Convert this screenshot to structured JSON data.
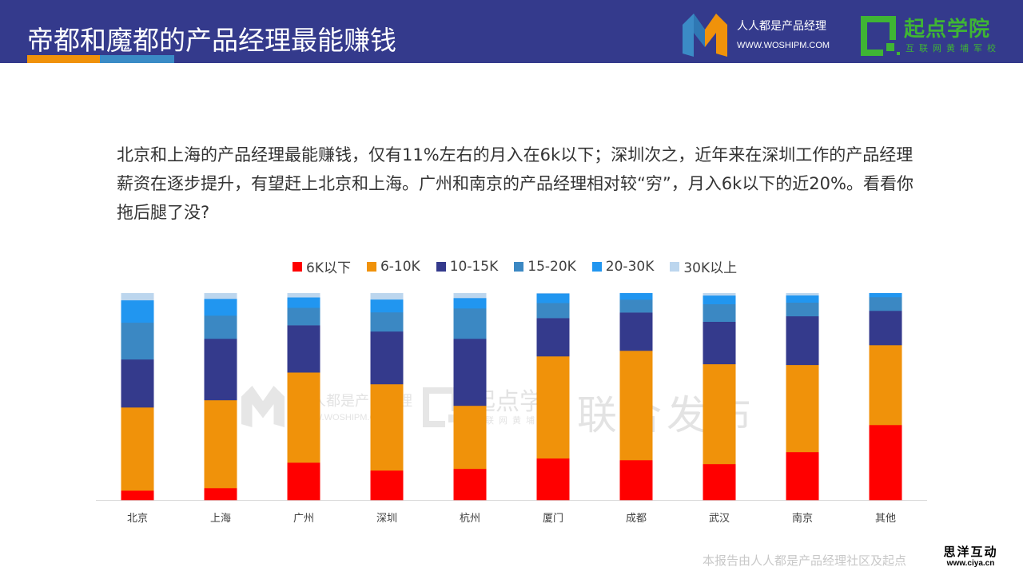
{
  "header": {
    "title": "帝都和魔都的产品经理最能赚钱",
    "brand_name": "人人都是产品经理",
    "brand_url": "WWW.WOSHIPM.COM",
    "school_name": "起点学院",
    "school_sub": "互联网黄埔军校",
    "colors": {
      "background": "#343a8c",
      "accent_orange": "#f0920a",
      "accent_blue": "#3b8bc6",
      "school_green": "#3fb534"
    }
  },
  "body": {
    "paragraph": "北京和上海的产品经理最能赚钱，仅有11%左右的月入在6k以下；深圳次之，近年来在深圳工作的产品经理薪资在逐步提升，有望赶上北京和上海。广州和南京的产品经理相对较“穷”，月入6k以下的近20%。看看你拖后腿了没?"
  },
  "watermark": {
    "text1": "人人都是产品经理",
    "text2": "WWW.WOSHIPM.COM",
    "text3": "起点学院",
    "text4": "互联网黄埔军校",
    "text5": "联合发布"
  },
  "footer": {
    "note": "本报告由人人都是产品经理社区及起点",
    "ciya_cn": "思洋互动",
    "ciya_url": "www.ciya.cn"
  },
  "chart_data": {
    "type": "bar",
    "stacked": true,
    "normalized": true,
    "title": "",
    "xlabel": "",
    "ylabel": "",
    "ylim": [
      0,
      100
    ],
    "grid": false,
    "legend_position": "top",
    "categories": [
      "北京",
      "上海",
      "广州",
      "深圳",
      "杭州",
      "厦门",
      "成都",
      "武汉",
      "南京",
      "其他"
    ],
    "series": [
      {
        "name": "6K以下",
        "color": "#ff0000",
        "values": [
          4.6,
          5.8,
          18.1,
          14.3,
          15.1,
          20.1,
          19.3,
          17.4,
          23.2,
          36.3
        ]
      },
      {
        "name": "6-10K",
        "color": "#f0920a",
        "values": [
          40.2,
          42.5,
          43.6,
          41.7,
          30.5,
          49.4,
          52.9,
          48.3,
          42.1,
          38.6
        ]
      },
      {
        "name": "10-15K",
        "color": "#343a8c",
        "values": [
          23.2,
          29.7,
          22.8,
          25.5,
          32.4,
          18.5,
          18.5,
          20.5,
          23.6,
          16.6
        ]
      },
      {
        "name": "15-20K",
        "color": "#3b88c3",
        "values": [
          17.8,
          11.2,
          8.5,
          9.3,
          14.7,
          7.3,
          6.2,
          8.5,
          6.6,
          6.6
        ]
      },
      {
        "name": "20-30K",
        "color": "#2196f0",
        "values": [
          10.8,
          8.1,
          5.0,
          6.2,
          5.0,
          4.6,
          3.1,
          4.2,
          3.5,
          1.9
        ]
      },
      {
        "name": "30K以上",
        "color": "#bcd6ee",
        "values": [
          3.4,
          2.7,
          2.0,
          3.0,
          2.3,
          0.1,
          0.0,
          1.1,
          1.0,
          0.0
        ]
      }
    ]
  }
}
